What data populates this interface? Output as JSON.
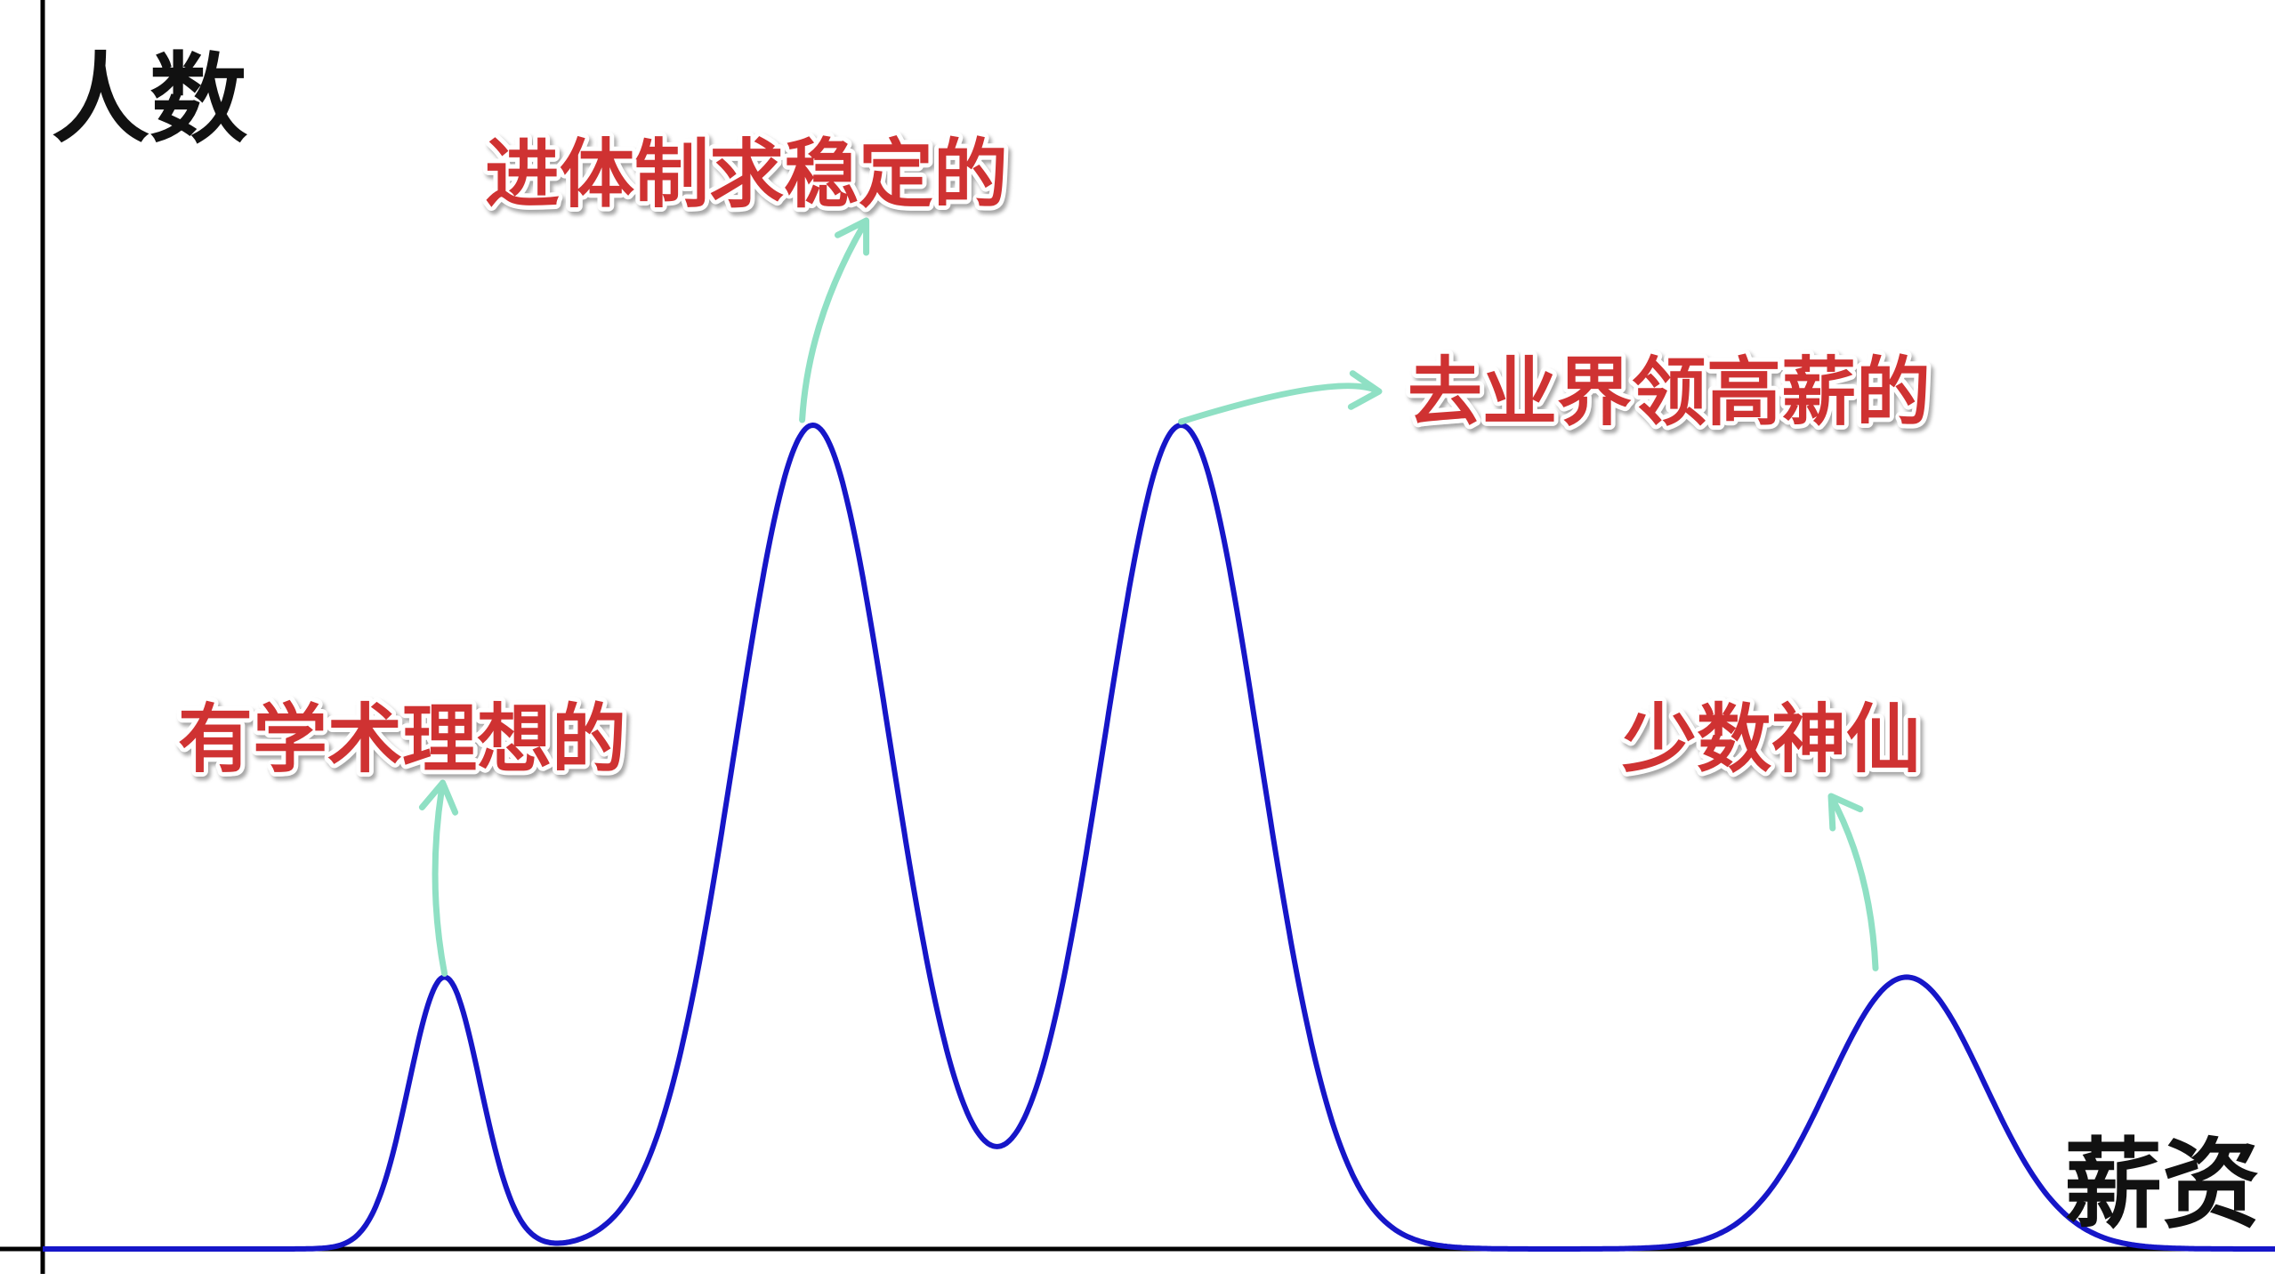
{
  "chart_data": {
    "type": "line",
    "title": "",
    "xlabel": "薪资",
    "ylabel": "人数",
    "grid": false,
    "legend": "none",
    "xlim": [
      0,
      100
    ],
    "ylim": [
      0,
      100
    ],
    "series": [
      {
        "peaks": [
          {
            "center": 18,
            "height": 33,
            "width": 1.6
          },
          {
            "center": 34.5,
            "height": 100,
            "width": 3.5
          },
          {
            "center": 51,
            "height": 100,
            "width": 3.5
          },
          {
            "center": 83.5,
            "height": 33,
            "width": 3.5
          }
        ]
      }
    ],
    "annotations": [
      {
        "peak": 0,
        "text": "有学术理想的"
      },
      {
        "peak": 1,
        "text": "进体制求稳定的"
      },
      {
        "peak": 2,
        "text": "去业界领高薪的"
      },
      {
        "peak": 3,
        "text": "少数神仙"
      }
    ]
  },
  "colors": {
    "curve": "#1616c8",
    "annotation_text": "#cf3232",
    "arrow": "#8fe0c4",
    "axis": "#000000"
  }
}
